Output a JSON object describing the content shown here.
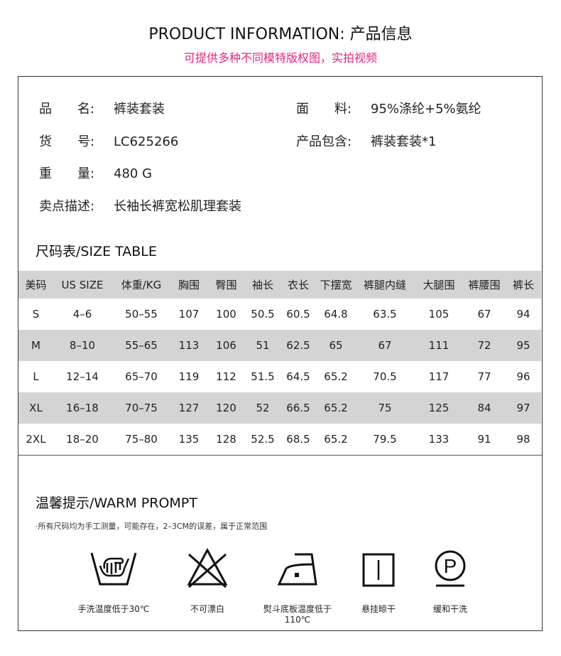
{
  "header": {
    "title": "PRODUCT INFORMATION: 产品信息",
    "subtitle": "可提供多种不同模特版权图，实拍视频"
  },
  "info": {
    "name_label": "品　　名:",
    "name": "裤装套装",
    "fabric_label": "面　　料:",
    "fabric": "95%涤纶+5%氨纶",
    "sku_label": "货　　号:",
    "sku": "LC625266",
    "includes_label": "产品包含:",
    "includes": "裤装套装*1",
    "weight_label": "重　　量:",
    "weight": "480 G",
    "selling_label": "卖点描述:",
    "selling": "长袖长裤宽松肌理套装"
  },
  "size_table": {
    "title": "尺码表/SIZE TABLE",
    "headers": [
      "美码",
      "US SIZE",
      "体重/KG",
      "胸围",
      "臀围",
      "袖长",
      "衣长",
      "下摆宽",
      "裤腿内缝",
      "大腿围",
      "裤腰围",
      "裤长"
    ],
    "rows": [
      [
        "S",
        "4–6",
        "50–55",
        "107",
        "100",
        "50.5",
        "60.5",
        "64.8",
        "63.5",
        "105",
        "67",
        "94"
      ],
      [
        "M",
        "8–10",
        "55–65",
        "113",
        "106",
        "51",
        "62.5",
        "65",
        "67",
        "111",
        "72",
        "95"
      ],
      [
        "L",
        "12–14",
        "65–70",
        "119",
        "112",
        "51.5",
        "64.5",
        "65.2",
        "70.5",
        "117",
        "77",
        "96"
      ],
      [
        "XL",
        "16–18",
        "70–75",
        "127",
        "120",
        "52",
        "66.5",
        "65.2",
        "75",
        "125",
        "84",
        "97"
      ],
      [
        "2XL",
        "18–20",
        "75–80",
        "135",
        "128",
        "52.5",
        "68.5",
        "65.2",
        "79.5",
        "133",
        "91",
        "98"
      ]
    ]
  },
  "prompt": {
    "title": "温馨提示/WARM PROMPT",
    "note": "·所有尺码均为手工测量，可能存在，2–3CM的误差，属于正常范围",
    "care": [
      {
        "icon": "hand-wash-icon",
        "label": "手洗温度低于30℃"
      },
      {
        "icon": "no-bleach-icon",
        "label": "不可漂白"
      },
      {
        "icon": "iron-low-icon",
        "label": "熨斗底板温度低于110℃"
      },
      {
        "icon": "line-dry-icon",
        "label": "悬挂晾干"
      },
      {
        "icon": "gentle-dry-clean-icon",
        "label": "缓和干洗"
      }
    ]
  },
  "colors": {
    "accent": "#e6257f",
    "row_gray": "#d4d4d4"
  }
}
